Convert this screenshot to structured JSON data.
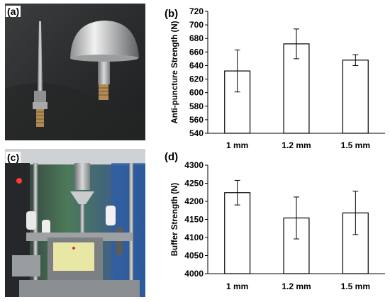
{
  "panels": {
    "a": "(a)",
    "b": "(b)",
    "c": "(c)",
    "d": "(d)"
  },
  "colors": {
    "photo_a_bg": "#2f3132",
    "photo_c_bg": "#3a3d40",
    "bar_fill": "#ffffff",
    "bar_stroke": "#000000"
  },
  "chart_data": [
    {
      "panel": "(b)",
      "type": "bar",
      "categories": [
        "1 mm",
        "1.2 mm",
        "1.5 mm"
      ],
      "values": [
        632,
        672,
        648
      ],
      "errors": [
        31,
        22,
        8
      ],
      "title": "",
      "xlabel": "",
      "ylabel": "Anti-puncture Strength (N)",
      "ylim": [
        540,
        720
      ],
      "yticks": [
        540,
        560,
        580,
        600,
        620,
        640,
        660,
        680,
        700,
        720
      ],
      "grid": false,
      "legend": "none"
    },
    {
      "panel": "(d)",
      "type": "bar",
      "categories": [
        "1 mm",
        "1.2 mm",
        "1.5 mm"
      ],
      "values": [
        4224,
        4154,
        4168
      ],
      "errors": [
        34,
        58,
        60
      ],
      "title": "",
      "xlabel": "",
      "ylabel": "Buffer Strength (N)",
      "ylim": [
        4000,
        4300
      ],
      "yticks": [
        4000,
        4050,
        4100,
        4150,
        4200,
        4250,
        4300
      ],
      "grid": false,
      "legend": "none"
    }
  ]
}
